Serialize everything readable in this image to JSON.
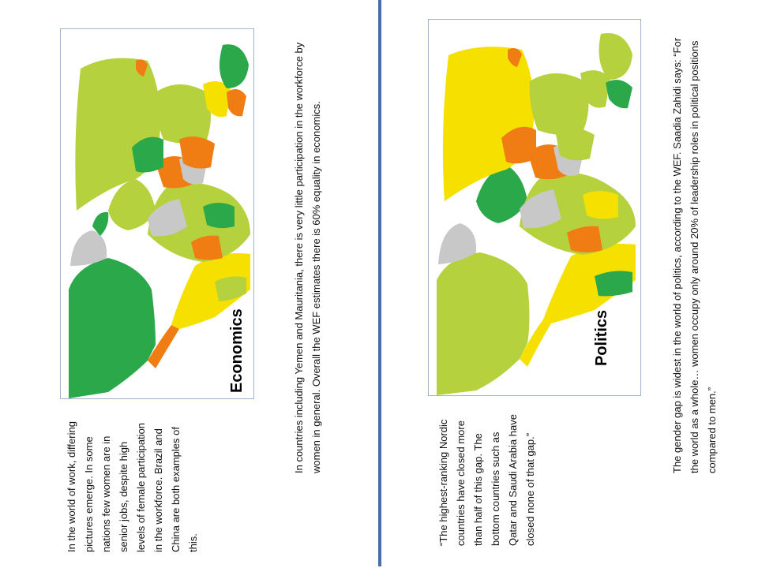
{
  "left_panel": {
    "map_label": "Economics",
    "intro_text": "In the world of work, differing pictures emerge. In some nations few women are in senior jobs, despite high levels of female participation in the workforce. Brazil and China are both examples of this.",
    "detail_text": "In countries including Yemen and Mauritania, there is very little participation in the workforce by women in general. Overall the WEF estimates there is 60% equality in economics."
  },
  "right_panel": {
    "map_label": "Politics",
    "quote_text": "“The highest-ranking Nordic countries have closed more than half of this gap. The bottom countries such as Qatar and Saudi Arabia have closed none of that gap.”",
    "detail_text": "The gender gap is widest in the world of politics, according to the WEF. Saadia Zahidi says: “For the world as a whole… women occupy only around 20% of leadership roles in political positions compared to men.”"
  },
  "colors": {
    "dark_green": "#2aa84a",
    "light_green": "#b5d13e",
    "yellow": "#f5e000",
    "orange": "#f07d14",
    "grey": "#c8c8c8",
    "border_blue": "#4a6fa5"
  }
}
